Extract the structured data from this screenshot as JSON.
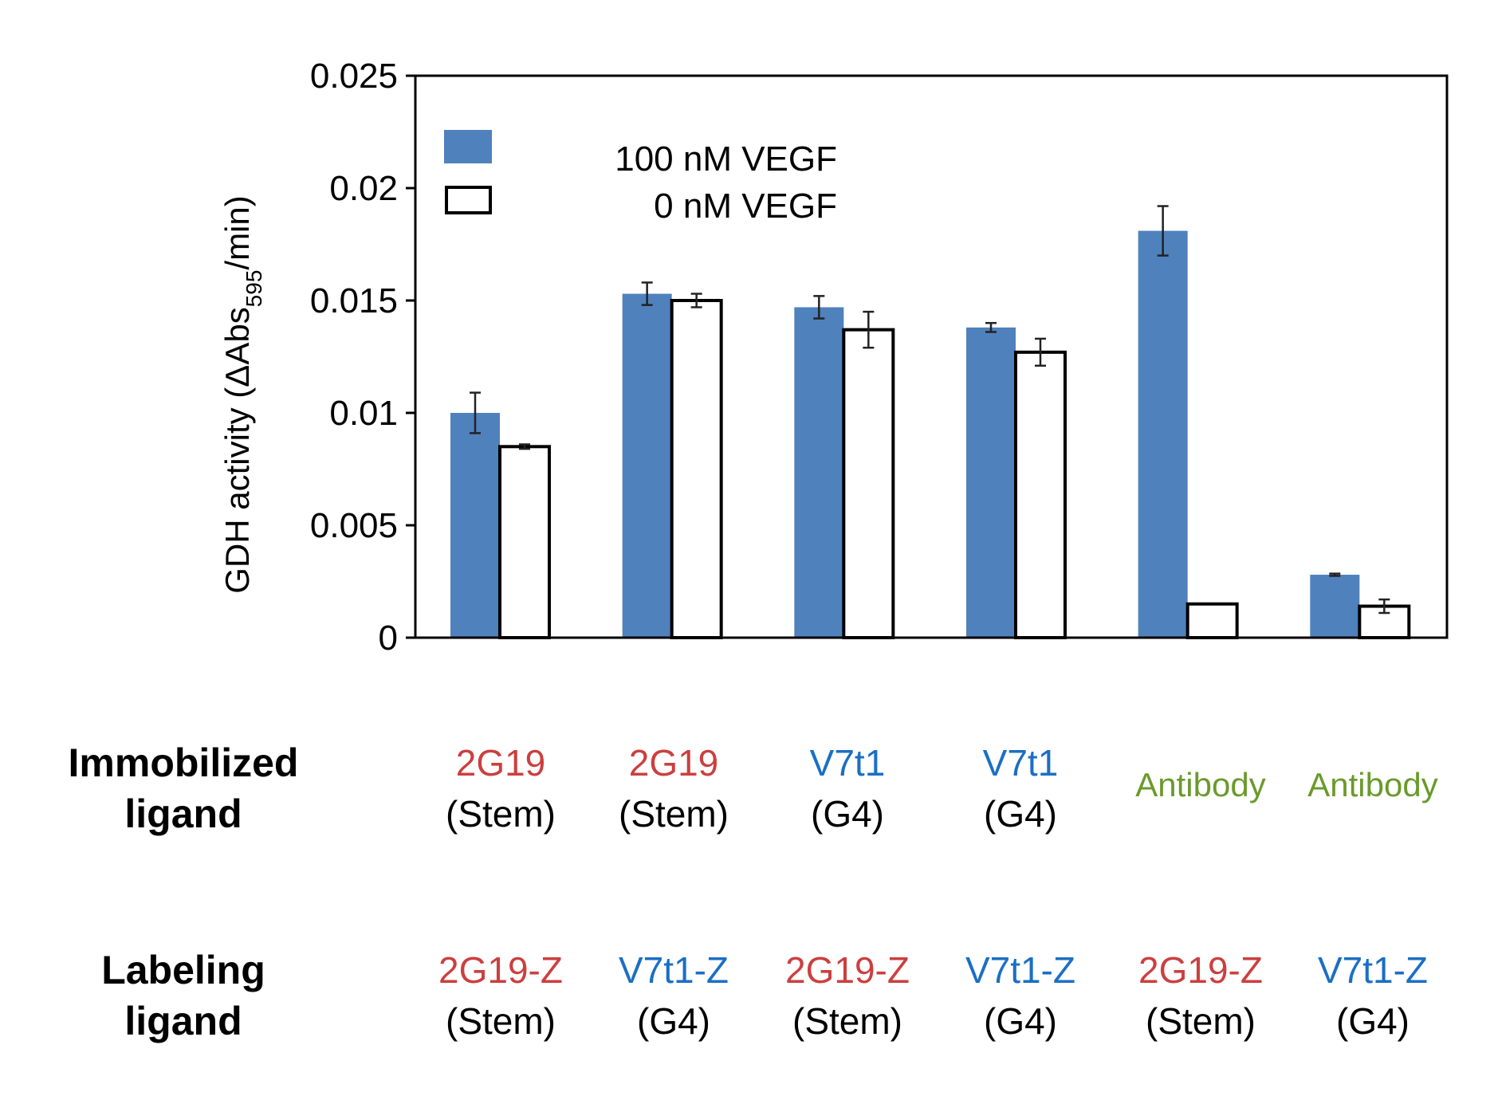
{
  "chart_data": {
    "type": "bar",
    "ylabel": "GDH activity (ΔAbs595/min)",
    "ylabel_parts": {
      "prefix": "GDH activity (ΔAbs",
      "subscript": "595",
      "suffix": "/min)"
    },
    "ylim": [
      0,
      0.025
    ],
    "yticks": [
      "0",
      "0.005",
      "0.01",
      "0.015",
      "0.02",
      "0.025"
    ],
    "ytick_values": [
      0,
      0.005,
      0.01,
      0.015,
      0.02,
      0.025
    ],
    "categories": [
      "2G19 (Stem) / 2G19-Z (Stem)",
      "2G19 (Stem) / V7t1-Z (G4)",
      "V7t1 (G4) / 2G19-Z (Stem)",
      "V7t1 (G4) / V7t1-Z (G4)",
      "Antibody / 2G19-Z (Stem)",
      "Antibody / V7t1-Z (G4)"
    ],
    "series": [
      {
        "name": "100 nM VEGF",
        "color": "#4f81bd",
        "values": [
          0.01,
          0.0153,
          0.0147,
          0.0138,
          0.0181,
          0.0028
        ],
        "errors": [
          0.0009,
          0.0005,
          0.0005,
          0.0002,
          0.0011,
          5e-05
        ]
      },
      {
        "name": "0 nM VEGF",
        "color": "#ffffff",
        "values": [
          0.0085,
          0.015,
          0.0137,
          0.0127,
          0.0015,
          0.0014
        ],
        "errors": [
          0.0001,
          0.0003,
          0.0008,
          0.0006,
          0.0,
          0.0003
        ]
      }
    ],
    "legend": {
      "position": "top-left",
      "entries": [
        "100 nM VEGF",
        "0 nM VEGF"
      ]
    }
  },
  "table": {
    "immobilized_title": [
      "Immobilized",
      "ligand"
    ],
    "labeling_title": [
      "Labeling",
      "ligand"
    ],
    "immobilized": [
      {
        "name": "2G19",
        "sub": "(Stem)",
        "kind": "2g19"
      },
      {
        "name": "2G19",
        "sub": "(Stem)",
        "kind": "2g19"
      },
      {
        "name": "V7t1",
        "sub": "(G4)",
        "kind": "v7t1"
      },
      {
        "name": "V7t1",
        "sub": "(G4)",
        "kind": "v7t1"
      },
      {
        "name": "Antibody",
        "sub": "",
        "kind": "ab"
      },
      {
        "name": "Antibody",
        "sub": "",
        "kind": "ab"
      }
    ],
    "labeling": [
      {
        "name": "2G19-Z",
        "sub": "(Stem)",
        "kind": "2g19"
      },
      {
        "name": "V7t1-Z",
        "sub": "(G4)",
        "kind": "v7t1"
      },
      {
        "name": "2G19-Z",
        "sub": "(Stem)",
        "kind": "2g19"
      },
      {
        "name": "V7t1-Z",
        "sub": "(G4)",
        "kind": "v7t1"
      },
      {
        "name": "2G19-Z",
        "sub": "(Stem)",
        "kind": "2g19"
      },
      {
        "name": "V7t1-Z",
        "sub": "(G4)",
        "kind": "v7t1"
      }
    ]
  }
}
